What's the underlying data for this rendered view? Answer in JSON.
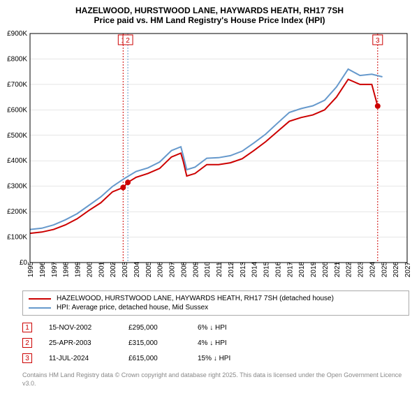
{
  "title": {
    "line1": "HAZELWOOD, HURSTWOOD LANE, HAYWARDS HEATH, RH17 7SH",
    "line2": "Price paid vs. HM Land Registry's House Price Index (HPI)"
  },
  "chart": {
    "type": "line",
    "background_color": "#ffffff",
    "border_color": "#000000",
    "ylim": [
      0,
      900000
    ],
    "ytick_step": 100000,
    "ytick_labels": [
      "£0",
      "£100K",
      "£200K",
      "£300K",
      "£400K",
      "£500K",
      "£600K",
      "£700K",
      "£800K",
      "£900K"
    ],
    "xlim": [
      1995,
      2027
    ],
    "xtick_step": 1,
    "xtick_labels": [
      "1995",
      "1996",
      "1997",
      "1998",
      "1999",
      "2000",
      "2001",
      "2002",
      "2003",
      "2004",
      "2005",
      "2006",
      "2007",
      "2008",
      "2009",
      "2010",
      "2011",
      "2012",
      "2013",
      "2014",
      "2015",
      "2016",
      "2017",
      "2018",
      "2019",
      "2020",
      "2021",
      "2022",
      "2023",
      "2024",
      "2025",
      "2026",
      "2027"
    ],
    "grid_color": "#cccccc",
    "series": [
      {
        "name": "price_paid",
        "label": "HAZELWOOD, HURSTWOOD LANE, HAYWARDS HEATH, RH17 7SH (detached house)",
        "color": "#cc0000",
        "line_width": 2,
        "x": [
          1995,
          1996,
          1997,
          1998,
          1999,
          2000,
          2001,
          2002,
          2002.9,
          2003.3,
          2004,
          2005,
          2006,
          2007,
          2007.8,
          2008,
          2008.3,
          2009,
          2010,
          2011,
          2012,
          2013,
          2014,
          2015,
          2016,
          2017,
          2018,
          2019,
          2020,
          2021,
          2022,
          2023,
          2024,
          2024.5
        ],
        "y": [
          115000,
          120000,
          130000,
          148000,
          172000,
          205000,
          235000,
          278000,
          295000,
          315000,
          335000,
          350000,
          370000,
          415000,
          430000,
          398000,
          340000,
          350000,
          385000,
          385000,
          392000,
          408000,
          440000,
          475000,
          515000,
          555000,
          570000,
          580000,
          600000,
          650000,
          720000,
          700000,
          700000,
          615000
        ]
      },
      {
        "name": "hpi",
        "label": "HPI: Average price, detached house, Mid Sussex",
        "color": "#6699cc",
        "line_width": 2,
        "x": [
          1995,
          1996,
          1997,
          1998,
          1999,
          2000,
          2001,
          2002,
          2003,
          2004,
          2005,
          2006,
          2007,
          2007.8,
          2008,
          2008.3,
          2009,
          2010,
          2011,
          2012,
          2013,
          2014,
          2015,
          2016,
          2017,
          2018,
          2019,
          2020,
          2021,
          2022,
          2023,
          2024,
          2024.9
        ],
        "y": [
          130000,
          135000,
          148000,
          168000,
          192000,
          225000,
          258000,
          299000,
          330000,
          358000,
          372000,
          395000,
          440000,
          455000,
          420000,
          365000,
          375000,
          410000,
          412000,
          420000,
          438000,
          470000,
          505000,
          548000,
          590000,
          605000,
          616000,
          638000,
          690000,
          760000,
          735000,
          740000,
          730000
        ]
      }
    ],
    "vertical_markers": [
      {
        "label": "1",
        "x": 2002.9,
        "color": "#cc0000"
      },
      {
        "label": "2",
        "x": 2003.3,
        "color": "#6699cc"
      },
      {
        "label": "3",
        "x": 2024.5,
        "color": "#cc0000"
      }
    ],
    "sale_points": [
      {
        "x": 2002.9,
        "y": 295000,
        "color": "#cc0000"
      },
      {
        "x": 2003.3,
        "y": 315000,
        "color": "#cc0000"
      },
      {
        "x": 2024.5,
        "y": 615000,
        "color": "#cc0000"
      }
    ]
  },
  "legend": {
    "rows": [
      {
        "color": "#cc0000",
        "label": "HAZELWOOD, HURSTWOOD LANE, HAYWARDS HEATH, RH17 7SH (detached house)"
      },
      {
        "color": "#6699cc",
        "label": "HPI: Average price, detached house, Mid Sussex"
      }
    ]
  },
  "sales": [
    {
      "num": "1",
      "date": "15-NOV-2002",
      "price": "£295,000",
      "delta": "6% ↓ HPI"
    },
    {
      "num": "2",
      "date": "25-APR-2003",
      "price": "£315,000",
      "delta": "4% ↓ HPI"
    },
    {
      "num": "3",
      "date": "11-JUL-2024",
      "price": "£615,000",
      "delta": "15% ↓ HPI"
    }
  ],
  "footnote": "Contains HM Land Registry data © Crown copyright and database right 2025. This data is licensed under the Open Government Licence v3.0."
}
